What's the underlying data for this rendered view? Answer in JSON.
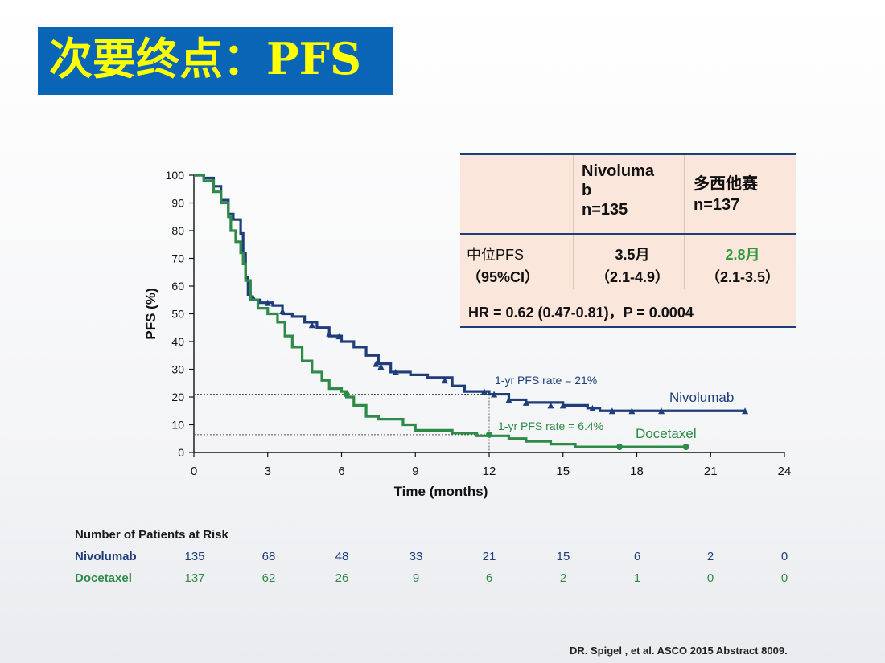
{
  "title": "次要终点：PFS",
  "table": {
    "header_col1": [
      "Nivoluma",
      "b",
      "n=135"
    ],
    "header_col2": [
      "多西他赛",
      "n=137"
    ],
    "row_label": [
      "中位PFS",
      "（95%CI）"
    ],
    "nivo_median": "3.5月",
    "nivo_ci": "（2.1-4.9）",
    "doce_median": "2.8月",
    "doce_ci": "（2.1-3.5）",
    "hr_line": "HR = 0.62 (0.47-0.81)，P = 0.0004"
  },
  "risk_table": {
    "heading": "Number of Patients at Risk",
    "rows": [
      {
        "label": "Nivolumab",
        "values": [
          "135",
          "68",
          "48",
          "33",
          "21",
          "15",
          "6",
          "2",
          "0"
        ]
      },
      {
        "label": "Docetaxel",
        "values": [
          "137",
          "62",
          "26",
          "9",
          "6",
          "2",
          "1",
          "0",
          "0"
        ]
      }
    ]
  },
  "footer": "DR. Spigel , et al. ASCO 2015 Abstract 8009.",
  "colors": {
    "nivolumab": "#1f3d7a",
    "docetaxel": "#2e8b47",
    "title_bg": "#0a65b6",
    "title_text": "#ffff00",
    "doce_median": "#2e9a3e"
  },
  "chart_data": {
    "type": "line",
    "xlabel": "Time (months)",
    "ylabel": "PFS (%)",
    "xlim": [
      0,
      24
    ],
    "ylim": [
      0,
      100
    ],
    "xticks": [
      0,
      3,
      6,
      9,
      12,
      15,
      18,
      21,
      24
    ],
    "yticks": [
      0,
      10,
      20,
      30,
      40,
      50,
      60,
      70,
      80,
      90,
      100
    ],
    "series": [
      {
        "name": "Nivolumab",
        "color": "#1f3d7a",
        "points": [
          [
            0,
            100
          ],
          [
            0.4,
            99
          ],
          [
            0.8,
            96
          ],
          [
            1.1,
            91
          ],
          [
            1.4,
            86
          ],
          [
            1.6,
            84
          ],
          [
            1.9,
            79
          ],
          [
            2.0,
            72
          ],
          [
            2.1,
            63
          ],
          [
            2.2,
            57
          ],
          [
            2.3,
            55
          ],
          [
            2.7,
            54
          ],
          [
            3.2,
            53
          ],
          [
            3.6,
            50
          ],
          [
            4.0,
            49
          ],
          [
            4.5,
            47
          ],
          [
            5.0,
            45
          ],
          [
            5.5,
            42
          ],
          [
            6.0,
            40
          ],
          [
            6.5,
            38
          ],
          [
            7.0,
            35
          ],
          [
            7.5,
            32
          ],
          [
            8.0,
            29
          ],
          [
            8.8,
            28
          ],
          [
            9.5,
            27
          ],
          [
            10.5,
            24
          ],
          [
            11.0,
            22
          ],
          [
            12.0,
            21
          ],
          [
            12.8,
            19
          ],
          [
            13.5,
            18
          ],
          [
            15.0,
            17
          ],
          [
            16.0,
            16
          ],
          [
            16.5,
            15
          ],
          [
            19.0,
            15
          ],
          [
            22.4,
            15
          ]
        ],
        "censors": [
          [
            2.4,
            56
          ],
          [
            3.0,
            54
          ],
          [
            3.6,
            51
          ],
          [
            4.8,
            46
          ],
          [
            5.5,
            43
          ],
          [
            5.9,
            42
          ],
          [
            7.4,
            32
          ],
          [
            7.6,
            31
          ],
          [
            8.2,
            29
          ],
          [
            10.2,
            26
          ],
          [
            11.8,
            22
          ],
          [
            12.2,
            21
          ],
          [
            12.8,
            19
          ],
          [
            13.5,
            18
          ],
          [
            14.5,
            17
          ],
          [
            15.0,
            17
          ],
          [
            16.2,
            16
          ],
          [
            17.0,
            15
          ],
          [
            17.8,
            15
          ],
          [
            19.0,
            15
          ],
          [
            22.4,
            15
          ]
        ]
      },
      {
        "name": "Docetaxel",
        "color": "#2e8b47",
        "points": [
          [
            0,
            100
          ],
          [
            0.4,
            98
          ],
          [
            0.8,
            94
          ],
          [
            1.1,
            90
          ],
          [
            1.4,
            85
          ],
          [
            1.5,
            80
          ],
          [
            1.7,
            76
          ],
          [
            1.9,
            72
          ],
          [
            2.0,
            68
          ],
          [
            2.1,
            62
          ],
          [
            2.3,
            55
          ],
          [
            2.6,
            52
          ],
          [
            3.0,
            50
          ],
          [
            3.4,
            47
          ],
          [
            3.7,
            42
          ],
          [
            4.0,
            38
          ],
          [
            4.4,
            33
          ],
          [
            4.8,
            29
          ],
          [
            5.2,
            26
          ],
          [
            5.5,
            23
          ],
          [
            6.0,
            22
          ],
          [
            6.2,
            20
          ],
          [
            6.5,
            17
          ],
          [
            7.0,
            13
          ],
          [
            7.5,
            12
          ],
          [
            8.5,
            10
          ],
          [
            9.0,
            8
          ],
          [
            10.5,
            7
          ],
          [
            11.5,
            6
          ],
          [
            12.0,
            6
          ],
          [
            12.8,
            5
          ],
          [
            13.5,
            4
          ],
          [
            14.5,
            3
          ],
          [
            15.5,
            2
          ],
          [
            20.0,
            2
          ]
        ],
        "censors": [
          [
            6.2,
            21
          ],
          [
            12.0,
            6.4
          ],
          [
            17.3,
            2
          ],
          [
            20.0,
            2
          ]
        ]
      }
    ],
    "annotations": [
      {
        "text": "1-yr PFS rate = 21%",
        "x": 12,
        "y": 21
      },
      {
        "text": "1-yr PFS rate = 6.4%",
        "x": 12,
        "y": 6.4
      },
      {
        "text": "Nivolumab",
        "series": "Nivolumab"
      },
      {
        "text": "Docetaxel",
        "series": "Docetaxel"
      }
    ],
    "grid": false,
    "legend": "none"
  }
}
